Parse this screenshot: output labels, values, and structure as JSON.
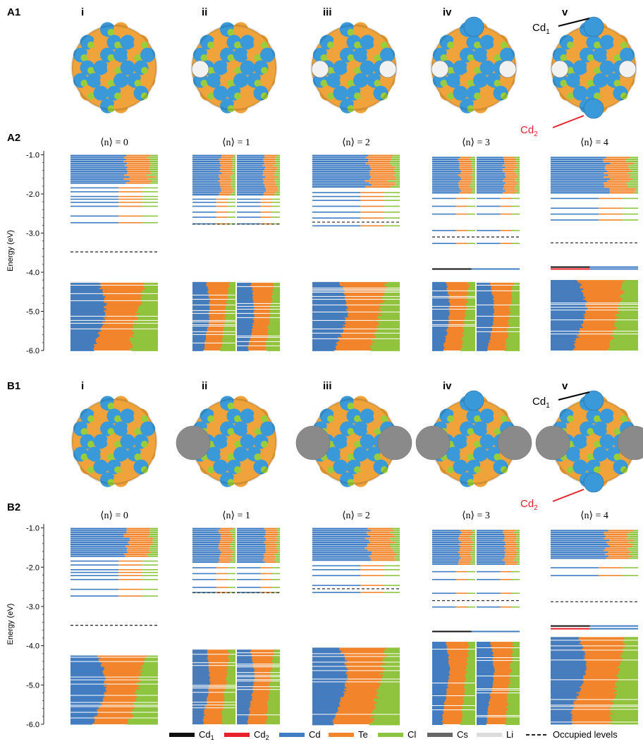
{
  "colors": {
    "Cd1": "#111111",
    "Cd2": "#e8202a",
    "Cd": "#3e7cc4",
    "Te": "#f2852b",
    "Cl": "#8cc63f",
    "Cs": "#666666",
    "Li": "#dcdcdc",
    "atom_cd": "#3a9ad9",
    "atom_te": "#f0a33a",
    "atom_cl": "#9acd3a",
    "atom_li": "#f2f2f2",
    "atom_cs": "#8a8a8a"
  },
  "legend": {
    "items": [
      {
        "key": "Cd1",
        "label": "Cd",
        "sub": "1"
      },
      {
        "key": "Cd2",
        "label": "Cd",
        "sub": "2"
      },
      {
        "key": "Cd",
        "label": "Cd",
        "sub": ""
      },
      {
        "key": "Te",
        "label": "Te",
        "sub": ""
      },
      {
        "key": "Cl",
        "label": "Cl",
        "sub": ""
      },
      {
        "key": "Cs",
        "label": "Cs",
        "sub": ""
      },
      {
        "key": "Li",
        "label": "Li",
        "sub": ""
      }
    ],
    "occupied_label": "Occupied levels"
  },
  "panels": {
    "A1": {
      "label": "A1",
      "romans": [
        "i",
        "ii",
        "iii",
        "iv",
        "v"
      ],
      "dopant": "Li",
      "cd1_label": "Cd",
      "cd1_sub": "1",
      "cd2_label": "Cd",
      "cd2_sub": "2"
    },
    "B1": {
      "label": "B1",
      "romans": [
        "i",
        "ii",
        "iii",
        "iv",
        "v"
      ],
      "dopant": "Cs",
      "cd1_label": "Cd",
      "cd1_sub": "1",
      "cd2_label": "Cd",
      "cd2_sub": "2"
    }
  },
  "chart_data": [
    {
      "type": "bar",
      "panel": "A2",
      "ylabel": "Energy (eV)",
      "ylim": [
        -6.0,
        -0.9
      ],
      "yticks": [
        -1.0,
        -2.0,
        -3.0,
        -4.0,
        -5.0,
        -6.0
      ],
      "ytick_labels": [
        "-1.0",
        "-2.0",
        "-3.0",
        "-4.0",
        "-5.0",
        "-6.0"
      ],
      "columns": [
        {
          "title": "⟨n⟩ = 0",
          "occupied_level": -3.48,
          "split": false,
          "unoccupied_top": -1.0,
          "unoccupied_bottom": -1.75,
          "gap_levels": [
            -1.83,
            -1.93,
            -2.05,
            -2.12,
            -2.2,
            -2.3,
            -2.55,
            -2.72
          ],
          "valence_top": -4.25,
          "valence_bottom": -6.0
        },
        {
          "title": "⟨n⟩ = 1",
          "occupied_level": -2.77,
          "split": true,
          "unoccupied_top": -1.0,
          "unoccupied_bottom": -2.05,
          "gap_levels": [
            -2.12,
            -2.2,
            -2.3,
            -2.45,
            -2.58,
            -2.75
          ],
          "valence_top": -4.25,
          "valence_bottom": -6.0
        },
        {
          "title": "⟨n⟩ = 2",
          "occupied_level": -2.72,
          "split": false,
          "unoccupied_top": -1.0,
          "unoccupied_bottom": -1.85,
          "gap_levels": [
            -1.95,
            -2.05,
            -2.15,
            -2.3,
            -2.45,
            -2.6,
            -2.8
          ],
          "valence_top": -4.25,
          "valence_bottom": -6.0
        },
        {
          "title": "⟨n⟩ = 3",
          "occupied_level": -3.1,
          "split": true,
          "unoccupied_top": -1.05,
          "unoccupied_bottom": -2.0,
          "gap_levels": [
            -2.1,
            -2.3,
            -2.5,
            -2.92,
            -3.25
          ],
          "special_levels": [
            {
              "value": -3.9,
              "color": "Cd1"
            }
          ],
          "valence_top": -4.25,
          "valence_bottom": -6.0
        },
        {
          "title": "⟨n⟩ = 4",
          "occupied_level": -3.25,
          "split": false,
          "unoccupied_top": -1.05,
          "unoccupied_bottom": -2.0,
          "gap_levels": [
            -2.1,
            -2.35,
            -2.5,
            -2.65
          ],
          "special_levels": [
            {
              "value": -3.85,
              "color": "Cd1"
            },
            {
              "value": -3.9,
              "color": "Cd2"
            }
          ],
          "valence_top": -4.2,
          "valence_bottom": -6.0
        }
      ]
    },
    {
      "type": "bar",
      "panel": "B2",
      "ylabel": "Energy (eV)",
      "ylim": [
        -6.0,
        -0.9
      ],
      "yticks": [
        -1.0,
        -2.0,
        -3.0,
        -4.0,
        -5.0,
        -6.0
      ],
      "ytick_labels": [
        "-1.0",
        "-2.0",
        "-3.0",
        "-4.0",
        "-5.0",
        "-6.0"
      ],
      "columns": [
        {
          "title": "⟨n⟩ = 0",
          "occupied_level": -3.48,
          "split": false,
          "unoccupied_top": -1.0,
          "unoccupied_bottom": -1.75,
          "gap_levels": [
            -1.83,
            -1.93,
            -2.05,
            -2.12,
            -2.2,
            -2.3,
            -2.55,
            -2.72
          ],
          "valence_top": -4.25,
          "valence_bottom": -6.0
        },
        {
          "title": "⟨n⟩ = 1",
          "occupied_level": -2.65,
          "split": true,
          "unoccupied_top": -1.0,
          "unoccupied_bottom": -1.9,
          "gap_levels": [
            -2.0,
            -2.15,
            -2.3,
            -2.5,
            -2.63
          ],
          "valence_top": -4.1,
          "valence_bottom": -6.0
        },
        {
          "title": "⟨n⟩ = 2",
          "occupied_level": -2.55,
          "split": false,
          "unoccupied_top": -1.0,
          "unoccupied_bottom": -1.85,
          "gap_levels": [
            -1.95,
            -2.05,
            -2.2,
            -2.45,
            -2.63
          ],
          "valence_top": -4.05,
          "valence_bottom": -6.0
        },
        {
          "title": "⟨n⟩ = 3",
          "occupied_level": -2.85,
          "split": true,
          "unoccupied_top": -1.05,
          "unoccupied_bottom": -1.95,
          "gap_levels": [
            -2.1,
            -2.3,
            -2.65,
            -3.0
          ],
          "special_levels": [
            {
              "value": -3.62,
              "color": "Cd1"
            }
          ],
          "valence_top": -3.9,
          "valence_bottom": -6.0
        },
        {
          "title": "⟨n⟩ = 4",
          "occupied_level": -2.88,
          "split": false,
          "unoccupied_top": -1.05,
          "unoccupied_bottom": -1.8,
          "gap_levels": [
            -2.0,
            -2.2
          ],
          "special_levels": [
            {
              "value": -3.48,
              "color": "Cd1"
            },
            {
              "value": -3.55,
              "color": "Cd2"
            }
          ],
          "valence_top": -3.78,
          "valence_bottom": -6.0
        }
      ]
    }
  ]
}
